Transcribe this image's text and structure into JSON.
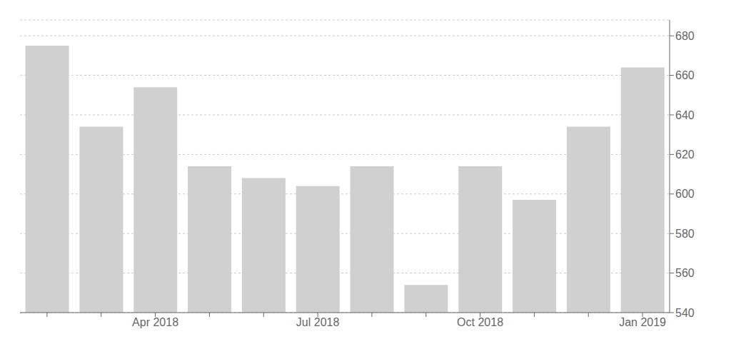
{
  "chart_data": {
    "type": "bar",
    "categories": [
      null,
      null,
      "Apr 2018",
      null,
      null,
      "Jul 2018",
      null,
      null,
      "Oct 2018",
      null,
      null,
      "Jan 2019"
    ],
    "values": [
      675,
      634,
      654,
      614,
      608,
      604,
      614,
      554,
      614,
      597,
      634,
      664
    ],
    "color": "#d0d0d0",
    "ylim": [
      540,
      688
    ],
    "yticks": [
      540,
      560,
      580,
      600,
      620,
      640,
      660,
      680
    ],
    "grid": true
  }
}
